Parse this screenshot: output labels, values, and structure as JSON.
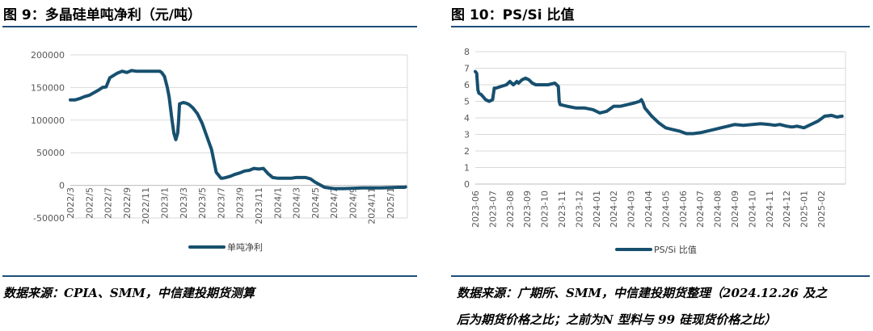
{
  "colors": {
    "series": "#17506f",
    "rule": "#1f4e79",
    "grid": "#d9d9d9",
    "axis": "#bfbfbf"
  },
  "left": {
    "title": "图 9：多晶硅单吨净利（元/吨）",
    "source": "数据来源：CPIA、SMM，中信建投期货测算"
  },
  "right": {
    "title": "图 10：PS/Si 比值",
    "source_line1": "数据来源：广期所、SMM，中信建投期货整理（2024.12.26 及之",
    "source_line2": "后为期货价格之比；之前为N 型料与 99 硅现货价格之比）"
  },
  "chart_data": [
    {
      "type": "line",
      "title": "",
      "xlabel": "",
      "ylabel": "",
      "ylim": [
        -50000,
        200000
      ],
      "yticks": [
        "200000",
        "150000",
        "100000",
        "50000",
        "0",
        "-50000"
      ],
      "ytick_values": [
        200000,
        150000,
        100000,
        50000,
        0,
        -50000
      ],
      "x_tick_labels": [
        "2022/3",
        "2022/5",
        "2022/7",
        "2022/9",
        "2022/11",
        "2023/1",
        "2023/3",
        "2023/5",
        "2023/7",
        "2023/9",
        "2023/11",
        "2024/1",
        "2024/3",
        "2024/5",
        "2024/7",
        "2024/9",
        "2024/11",
        "2025/1"
      ],
      "grid": true,
      "legend_position": "bottom",
      "series": [
        {
          "name": "单吨净利",
          "x_months": [
            0,
            0.5,
            1,
            1.5,
            2,
            2.5,
            3,
            3.4,
            3.8,
            4.2,
            5,
            5.5,
            6,
            6.5,
            7,
            7.5,
            8,
            8.5,
            9,
            9.3,
            9.5,
            9.7,
            10,
            10.3,
            10.5,
            10.8,
            11,
            11.2,
            11.4,
            11.5,
            11.6,
            12,
            12.3,
            12.6,
            13,
            13.5,
            14,
            14.5,
            15,
            15.5,
            16,
            16.2,
            16.5,
            17,
            17.5,
            18,
            18.5,
            19,
            19.5,
            20,
            20.5,
            21,
            21.5,
            22,
            22.5,
            23,
            23.5,
            24,
            24.5,
            25,
            25.5,
            26,
            27,
            28,
            29,
            30,
            31,
            32,
            33,
            34,
            34.8,
            35.3,
            35.5,
            35.6
          ],
          "values": [
            131000,
            131000,
            133000,
            136000,
            138000,
            142000,
            146000,
            150000,
            151000,
            165000,
            172000,
            175000,
            173000,
            176000,
            175000,
            175000,
            175000,
            175000,
            175000,
            175000,
            175000,
            173000,
            167000,
            150000,
            135000,
            100000,
            80000,
            70000,
            80000,
            100000,
            125000,
            127000,
            126000,
            124000,
            119000,
            110000,
            95000,
            75000,
            55000,
            20000,
            11000,
            11000,
            12000,
            14000,
            17000,
            19000,
            22000,
            23000,
            26000,
            25000,
            26000,
            18000,
            12000,
            11000,
            11000,
            11000,
            11000,
            12000,
            12000,
            12000,
            10000,
            5000,
            -3000,
            -5000,
            -5000,
            -4500,
            -4000,
            -4000,
            -4000,
            -3500,
            -3000,
            -3000,
            -3000,
            -2500
          ]
        }
      ]
    },
    {
      "type": "line",
      "title": "",
      "xlabel": "",
      "ylabel": "",
      "ylim": [
        0,
        8
      ],
      "yticks": [
        "8",
        "7",
        "6",
        "5",
        "4",
        "3",
        "2",
        "1",
        "0"
      ],
      "ytick_values": [
        8,
        7,
        6,
        5,
        4,
        3,
        2,
        1,
        0
      ],
      "x_tick_labels": [
        "2023-06",
        "2023-07",
        "2023-08",
        "2023-09",
        "2023-10",
        "2023-11",
        "2023-12",
        "2024-01",
        "2024-02",
        "2024-03",
        "2024-04",
        "2024-05",
        "2024-06",
        "2024-07",
        "2024-08",
        "2024-09",
        "2024-10",
        "2024-11",
        "2024-12",
        "2025-01",
        "2025-02"
      ],
      "grid": true,
      "legend_position": "bottom",
      "series": [
        {
          "name": "PS/Si 比值",
          "x_months": [
            0,
            0.08,
            0.15,
            0.2,
            0.35,
            0.6,
            0.8,
            1.0,
            1.1,
            1.2,
            1.5,
            1.8,
            2.0,
            2.2,
            2.4,
            2.5,
            2.7,
            2.9,
            3.1,
            3.3,
            3.5,
            3.8,
            4.2,
            4.6,
            4.8,
            4.85,
            4.9,
            5.3,
            5.8,
            6.3,
            6.8,
            7.2,
            7.6,
            8.0,
            8.4,
            8.8,
            9.2,
            9.5,
            9.6,
            9.7,
            9.8,
            10.2,
            10.6,
            11.0,
            11.4,
            11.8,
            12.2,
            12.6,
            13.0,
            13.4,
            13.8,
            14.2,
            14.6,
            15.0,
            15.5,
            16.0,
            16.5,
            17.0,
            17.3,
            17.6,
            18.0,
            18.3,
            18.6,
            19.0,
            19.4,
            19.8,
            20.2,
            20.6,
            20.9,
            21.2
          ],
          "values": [
            6.8,
            6.7,
            5.7,
            5.5,
            5.4,
            5.1,
            5.0,
            5.1,
            5.8,
            5.8,
            5.9,
            6.0,
            6.2,
            6.0,
            6.2,
            6.1,
            6.3,
            6.4,
            6.3,
            6.1,
            6.0,
            6.0,
            6.0,
            6.1,
            5.9,
            5.0,
            4.8,
            4.7,
            4.6,
            4.6,
            4.5,
            4.3,
            4.4,
            4.7,
            4.7,
            4.8,
            4.9,
            5.0,
            5.1,
            4.9,
            4.6,
            4.1,
            3.7,
            3.4,
            3.3,
            3.2,
            3.05,
            3.05,
            3.1,
            3.2,
            3.3,
            3.4,
            3.5,
            3.6,
            3.55,
            3.6,
            3.65,
            3.6,
            3.55,
            3.6,
            3.5,
            3.45,
            3.5,
            3.4,
            3.6,
            3.8,
            4.1,
            4.15,
            4.05,
            4.1
          ]
        }
      ]
    }
  ]
}
